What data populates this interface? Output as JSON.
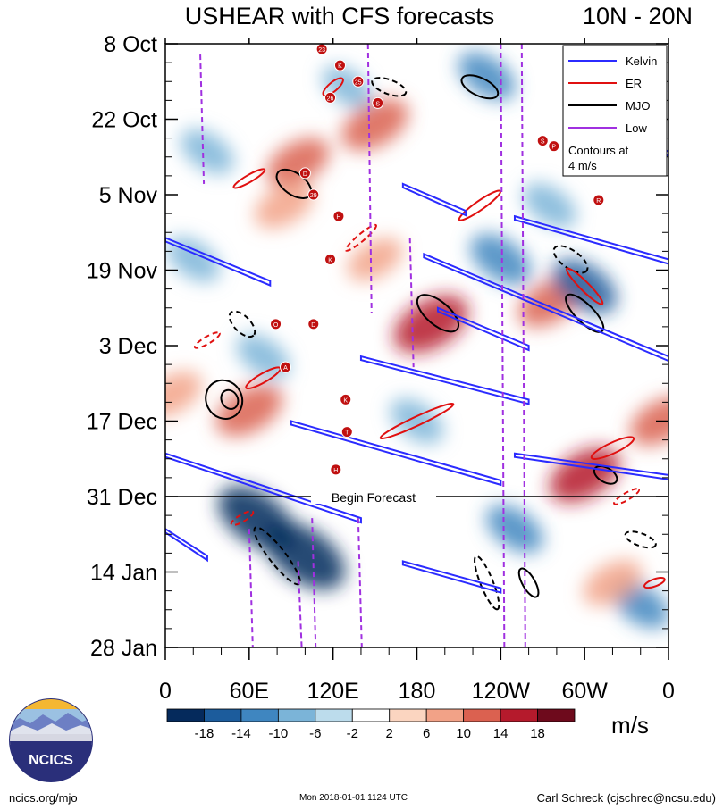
{
  "colors": {
    "kelvin": "#2b2bff",
    "er": "#e01010",
    "mjo": "#000000",
    "low": "#a030e0",
    "tc_marker": "#c01010",
    "scale": [
      "#052a5c",
      "#1c5c9c",
      "#3f86c0",
      "#7bb4d8",
      "#bcdcec",
      "#ffffff",
      "#fbd5c0",
      "#f2a287",
      "#db6150",
      "#b51a2c",
      "#6e0a1c"
    ]
  },
  "chart_data": {
    "type": "heatmap",
    "title": "USHEAR with CFS forecasts",
    "region": "10N - 20N",
    "y_tick_labels": [
      "8 Oct",
      "22 Oct",
      "5 Nov",
      "19 Nov",
      "3 Dec",
      "17 Dec",
      "31 Dec",
      "14 Jan",
      "28 Jan"
    ],
    "x_tick_labels": [
      "0",
      "60E",
      "120E",
      "180",
      "120W",
      "60W",
      "0"
    ],
    "x_range_deg": [
      0,
      360
    ],
    "forecast_start": "31 Dec",
    "forecast_label": "Begin Forecast",
    "colorbar": {
      "levels": [
        -18,
        -14,
        -10,
        -6,
        -2,
        2,
        6,
        10,
        14,
        18
      ],
      "labels": [
        "-18",
        "-14",
        "-10",
        "-6",
        "-2",
        "2",
        "6",
        "10",
        "14",
        "18"
      ],
      "units": "m/s"
    },
    "legend": {
      "placement": "top-right",
      "entries": [
        {
          "name": "Kelvin",
          "color": "#2b2bff"
        },
        {
          "name": "ER",
          "color": "#e01010"
        },
        {
          "name": "MJO",
          "color": "#000000"
        },
        {
          "name": "Low",
          "color": "#a030e0"
        }
      ],
      "note_line1": "Contours at",
      "note_line2": "4 m/s"
    },
    "anomalies": [
      {
        "lon": 150,
        "day": 15,
        "value": 14
      },
      {
        "lon": 190,
        "day": 52,
        "value": 18
      },
      {
        "lon": 95,
        "day": 22,
        "value": 12
      },
      {
        "lon": 60,
        "day": 68,
        "value": 14
      },
      {
        "lon": 275,
        "day": 48,
        "value": 12
      },
      {
        "lon": 300,
        "day": 80,
        "value": 16
      },
      {
        "lon": 355,
        "day": 70,
        "value": 12
      },
      {
        "lon": 85,
        "day": 30,
        "value": 10
      },
      {
        "lon": 5,
        "day": 65,
        "value": 10
      },
      {
        "lon": 150,
        "day": 40,
        "value": 8
      },
      {
        "lon": 230,
        "day": 6,
        "value": -10
      },
      {
        "lon": 300,
        "day": 45,
        "value": -14
      },
      {
        "lon": 240,
        "day": 40,
        "value": -12
      },
      {
        "lon": 100,
        "day": 95,
        "value": -22
      },
      {
        "lon": 65,
        "day": 88,
        "value": -20
      },
      {
        "lon": 20,
        "day": 40,
        "value": -8
      },
      {
        "lon": 180,
        "day": 70,
        "value": -8
      },
      {
        "lon": 340,
        "day": 104,
        "value": -10
      },
      {
        "lon": 250,
        "day": 90,
        "value": -10
      },
      {
        "lon": 30,
        "day": 20,
        "value": -8
      },
      {
        "lon": 70,
        "day": 58,
        "value": -8
      },
      {
        "lon": 320,
        "day": 100,
        "value": 10
      },
      {
        "lon": 130,
        "day": 8,
        "value": -6
      },
      {
        "lon": 275,
        "day": 30,
        "value": -8
      }
    ],
    "mjo_contours": [
      {
        "lon": 46,
        "day": 66,
        "rx": 9,
        "ry": 11,
        "rot": -28,
        "dashed": false
      },
      {
        "lon": 42,
        "day": 66,
        "rx": 20,
        "ry": 22,
        "rot": -28,
        "dashed": false
      },
      {
        "lon": 92,
        "day": 26,
        "rx": 22,
        "ry": 12,
        "rot": 35,
        "dashed": false
      },
      {
        "lon": 195,
        "day": 50,
        "rx": 28,
        "ry": 13,
        "rot": 40,
        "dashed": false
      },
      {
        "lon": 225,
        "day": 8,
        "rx": 22,
        "ry": 10,
        "rot": 25,
        "dashed": false
      },
      {
        "lon": 300,
        "day": 50,
        "rx": 28,
        "ry": 10,
        "rot": 45,
        "dashed": false
      },
      {
        "lon": 260,
        "day": 100,
        "rx": 18,
        "ry": 7,
        "rot": 60,
        "dashed": false
      },
      {
        "lon": 315,
        "day": 80,
        "rx": 14,
        "ry": 8,
        "rot": 30,
        "dashed": false
      },
      {
        "lon": 80,
        "day": 95,
        "rx": 40,
        "ry": 9,
        "rot": 52,
        "dashed": true
      },
      {
        "lon": 290,
        "day": 40,
        "rx": 22,
        "ry": 10,
        "rot": 35,
        "dashed": true
      },
      {
        "lon": 160,
        "day": 8,
        "rx": 20,
        "ry": 8,
        "rot": 20,
        "dashed": true
      },
      {
        "lon": 55,
        "day": 52,
        "rx": 18,
        "ry": 9,
        "rot": 45,
        "dashed": true
      },
      {
        "lon": 340,
        "day": 92,
        "rx": 18,
        "ry": 7,
        "rot": 20,
        "dashed": true
      },
      {
        "lon": 230,
        "day": 100,
        "rx": 32,
        "ry": 7,
        "rot": 68,
        "dashed": true
      }
    ],
    "er_contours": [
      {
        "lon": 70,
        "day": 62,
        "rx": 22,
        "ry": 5,
        "rot": -30,
        "dashed": false
      },
      {
        "lon": 60,
        "day": 25,
        "rx": 20,
        "ry": 4,
        "rot": -30,
        "dashed": false
      },
      {
        "lon": 120,
        "day": 8,
        "rx": 14,
        "ry": 5,
        "rot": -40,
        "dashed": false
      },
      {
        "lon": 225,
        "day": 30,
        "rx": 28,
        "ry": 5,
        "rot": -35,
        "dashed": false
      },
      {
        "lon": 180,
        "day": 70,
        "rx": 45,
        "ry": 5,
        "rot": -25,
        "dashed": false
      },
      {
        "lon": 320,
        "day": 75,
        "rx": 26,
        "ry": 6,
        "rot": -25,
        "dashed": false
      },
      {
        "lon": 300,
        "day": 45,
        "rx": 28,
        "ry": 5,
        "rot": 45,
        "dashed": false
      },
      {
        "lon": 30,
        "day": 55,
        "rx": 16,
        "ry": 4,
        "rot": -30,
        "dashed": true
      },
      {
        "lon": 140,
        "day": 36,
        "rx": 22,
        "ry": 4,
        "rot": -40,
        "dashed": true
      },
      {
        "lon": 55,
        "day": 88,
        "rx": 14,
        "ry": 4,
        "rot": -30,
        "dashed": true
      },
      {
        "lon": 330,
        "day": 84,
        "rx": 16,
        "ry": 4,
        "rot": -30,
        "dashed": true
      },
      {
        "lon": 350,
        "day": 100,
        "rx": 12,
        "ry": 4,
        "rot": -20,
        "dashed": false
      }
    ],
    "kelvin_lines": [
      {
        "lon1": 0,
        "day1": 36,
        "lon2": 75,
        "day2": 44
      },
      {
        "lon1": 170,
        "day1": 26,
        "lon2": 215,
        "day2": 31
      },
      {
        "lon1": 185,
        "day1": 39,
        "lon2": 360,
        "day2": 58
      },
      {
        "lon1": 195,
        "day1": 49,
        "lon2": 260,
        "day2": 56
      },
      {
        "lon1": 90,
        "day1": 70,
        "lon2": 240,
        "day2": 81
      },
      {
        "lon1": 0,
        "day1": 76,
        "lon2": 140,
        "day2": 88
      },
      {
        "lon1": 140,
        "day1": 58,
        "lon2": 260,
        "day2": 66
      },
      {
        "lon1": 250,
        "day1": 76,
        "lon2": 360,
        "day2": 80
      },
      {
        "lon1": 0,
        "day1": 90,
        "lon2": 30,
        "day2": 95
      },
      {
        "lon1": 170,
        "day1": 96,
        "lon2": 240,
        "day2": 101
      },
      {
        "lon1": 250,
        "day1": 32,
        "lon2": 360,
        "day2": 40
      },
      {
        "lon1": 315,
        "day1": 14,
        "lon2": 360,
        "day2": 20
      }
    ],
    "low_lines": [
      {
        "lon": 25,
        "day1": 2,
        "day2": 26
      },
      {
        "lon": 145,
        "day1": 0,
        "day2": 50
      },
      {
        "lon": 175,
        "day1": 36,
        "day2": 60
      },
      {
        "lon": 60,
        "day1": 90,
        "day2": 112
      },
      {
        "lon": 105,
        "day1": 88,
        "day2": 112
      },
      {
        "lon": 138,
        "day1": 88,
        "day2": 112
      },
      {
        "lon": 240,
        "day1": 0,
        "day2": 112
      },
      {
        "lon": 255,
        "day1": 0,
        "day2": 112
      },
      {
        "lon": 95,
        "day1": 96,
        "day2": 112
      }
    ],
    "tc_markers": [
      {
        "lon": 112,
        "day": 1,
        "label": "23"
      },
      {
        "lon": 125,
        "day": 4,
        "label": "K"
      },
      {
        "lon": 138,
        "day": 7,
        "label": "25"
      },
      {
        "lon": 118,
        "day": 10,
        "label": "26"
      },
      {
        "lon": 152,
        "day": 11,
        "label": "S"
      },
      {
        "lon": 270,
        "day": 18,
        "label": "S"
      },
      {
        "lon": 278,
        "day": 19,
        "label": "P"
      },
      {
        "lon": 100,
        "day": 24,
        "label": "D"
      },
      {
        "lon": 106,
        "day": 28,
        "label": "29"
      },
      {
        "lon": 124,
        "day": 32,
        "label": "H"
      },
      {
        "lon": 310,
        "day": 29,
        "label": "R"
      },
      {
        "lon": 118,
        "day": 40,
        "label": "K"
      },
      {
        "lon": 79,
        "day": 52,
        "label": "O"
      },
      {
        "lon": 106,
        "day": 52,
        "label": "D"
      },
      {
        "lon": 86,
        "day": 60,
        "label": "A"
      },
      {
        "lon": 129,
        "day": 66,
        "label": "K"
      },
      {
        "lon": 130,
        "day": 72,
        "label": "T"
      },
      {
        "lon": 122,
        "day": 79,
        "label": "H"
      }
    ]
  },
  "footer": {
    "logo_text": "NCICS",
    "left": "ncics.org/mjo",
    "center": "Mon 2018-01-01 1124 UTC",
    "right": "Carl Schreck (cjschrec@ncsu.edu)"
  }
}
